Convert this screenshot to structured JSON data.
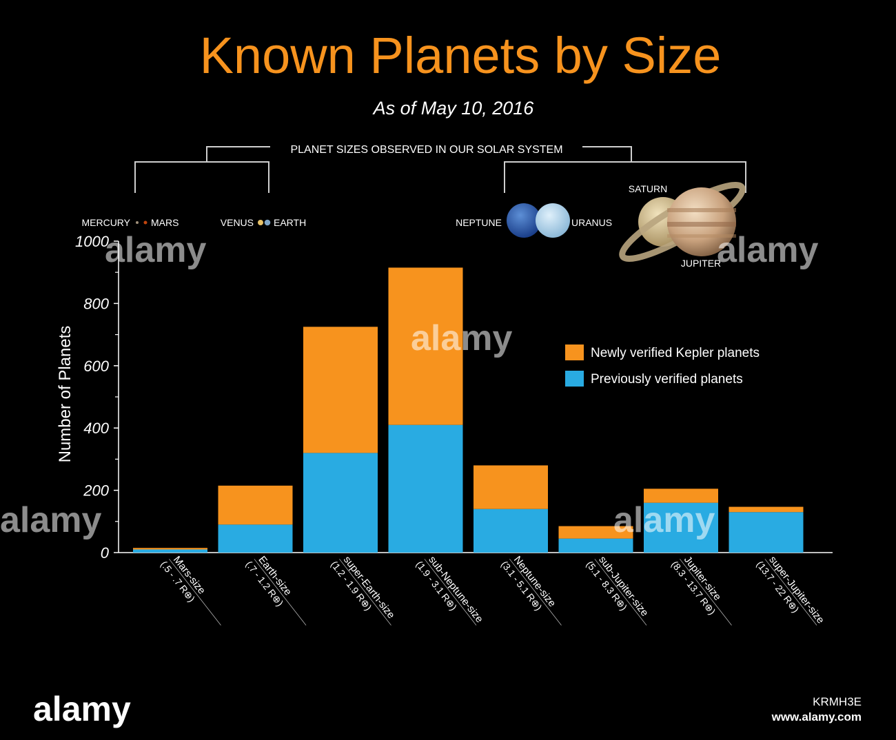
{
  "header": {
    "title": "Known Planets by Size",
    "subtitle": "As of May 10, 2016"
  },
  "solar_system": {
    "bracket_label": "PLANET SIZES OBSERVED IN OUR SOLAR SYSTEM",
    "planets": {
      "mercury": "MERCURY",
      "mars": "MARS",
      "venus": "VENUS",
      "earth": "EARTH",
      "neptune": "NEPTUNE",
      "uranus": "URANUS",
      "saturn": "SATURN",
      "jupiter": "JUPITER"
    }
  },
  "chart_data": {
    "type": "bar",
    "stacked": true,
    "title": "Known Planets by Size",
    "subtitle": "As of May 10, 2016",
    "ylabel": "Number of Planets",
    "xlabel": "",
    "ylim": [
      0,
      1000
    ],
    "yticks": [
      0,
      200,
      400,
      600,
      800,
      1000
    ],
    "categories": [
      {
        "name": "Mars-size",
        "range": "(.5 - .7 R⊕)"
      },
      {
        "name": "Earth-size",
        "range": "(.7 - 1.2 R⊕)"
      },
      {
        "name": "super-Earth-size",
        "range": "(1.2 - 1.9 R⊕)"
      },
      {
        "name": "sub-Neptune-size",
        "range": "(1.9 - 3.1 R⊕)"
      },
      {
        "name": "Neptune-size",
        "range": "(3.1 - 5.1 R⊕)"
      },
      {
        "name": "sub-Jupiter-size",
        "range": "(5.1 - 8.3 R⊕)"
      },
      {
        "name": "Jupiter-size",
        "range": "(8.3 - 13.7 R⊕)"
      },
      {
        "name": "super-Jupiter-size",
        "range": "(13.7 - 22 R⊕)"
      }
    ],
    "series": [
      {
        "name": "Previously verified planets",
        "color": "#29abe2",
        "values": [
          10,
          90,
          320,
          410,
          140,
          45,
          160,
          130
        ]
      },
      {
        "name": "Newly verified Kepler planets",
        "color": "#f7931e",
        "values": [
          5,
          125,
          405,
          505,
          140,
          40,
          45,
          17
        ]
      }
    ],
    "legend_position": "right",
    "legend": [
      "Newly verified Kepler planets",
      "Previously verified planets"
    ],
    "grid": false
  },
  "watermark": {
    "text": "alamy",
    "site": "www.alamy.com",
    "id": "KRMH3E"
  }
}
